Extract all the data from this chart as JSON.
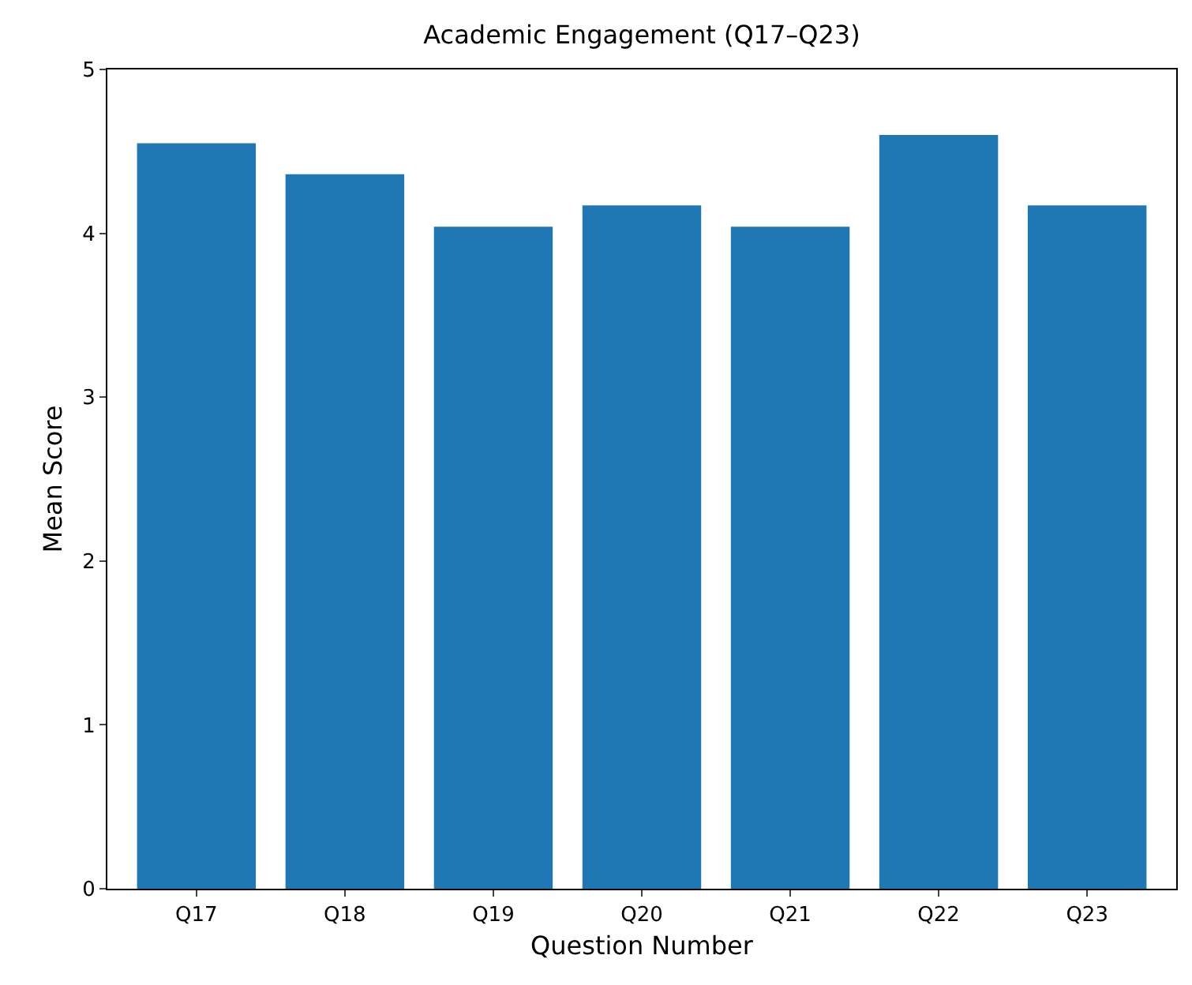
{
  "chart_data": {
    "type": "bar",
    "title": "Academic Engagement (Q17–Q23)",
    "xlabel": "Question Number",
    "ylabel": "Mean Score",
    "categories": [
      "Q17",
      "Q18",
      "Q19",
      "Q20",
      "Q21",
      "Q22",
      "Q23"
    ],
    "values": [
      4.55,
      4.36,
      4.04,
      4.17,
      4.04,
      4.6,
      4.17
    ],
    "color": "#1f77b4",
    "ylim": [
      0,
      5
    ],
    "yticks": [
      0,
      1,
      2,
      3,
      4,
      5
    ],
    "grid": false
  }
}
